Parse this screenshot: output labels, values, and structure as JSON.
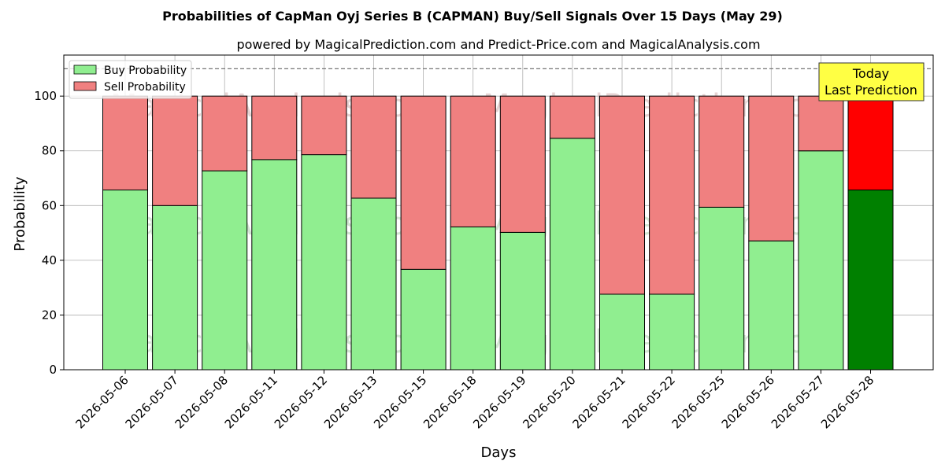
{
  "chart_data": {
    "type": "bar",
    "stacked": true,
    "title": "Probabilities of CapMan Oyj Series B (CAPMAN) Buy/Sell Signals Over 15 Days (May 29)",
    "subtitle": "powered by MagicalPrediction.com and Predict-Price.com and MagicalAnalysis.com",
    "xlabel": "Days",
    "ylabel": "Probability",
    "ylim": [
      0,
      115
    ],
    "yticks": [
      0,
      20,
      40,
      60,
      80,
      100
    ],
    "grid": true,
    "legend_position": "top-left",
    "reference_line": 110,
    "categories": [
      "2026-05-06",
      "2026-05-07",
      "2026-05-08",
      "2026-05-11",
      "2026-05-12",
      "2026-05-13",
      "2026-05-15",
      "2026-05-18",
      "2026-05-19",
      "2026-05-20",
      "2026-05-21",
      "2026-05-22",
      "2026-05-25",
      "2026-05-26",
      "2026-05-27",
      "2026-05-28"
    ],
    "series": [
      {
        "name": "Buy Probability",
        "color": "#90ee90",
        "highlight_color": "#008000",
        "values": [
          65.7,
          60.0,
          72.7,
          76.8,
          78.6,
          62.7,
          36.7,
          52.2,
          50.2,
          84.6,
          27.6,
          27.6,
          59.4,
          47.1,
          80.0,
          65.7
        ]
      },
      {
        "name": "Sell Probability",
        "color": "#f08080",
        "highlight_color": "#ff0000",
        "values": [
          34.3,
          40.0,
          27.3,
          23.2,
          21.4,
          37.3,
          63.3,
          47.8,
          49.8,
          15.4,
          72.4,
          72.4,
          40.6,
          52.9,
          20.0,
          34.3
        ]
      }
    ],
    "annotation": {
      "lines": [
        "Today",
        "Last Prediction"
      ],
      "color": "#ffff44"
    },
    "watermarks": [
      "MagicalAnalysis.com",
      "MagicalPrediction.com"
    ]
  }
}
